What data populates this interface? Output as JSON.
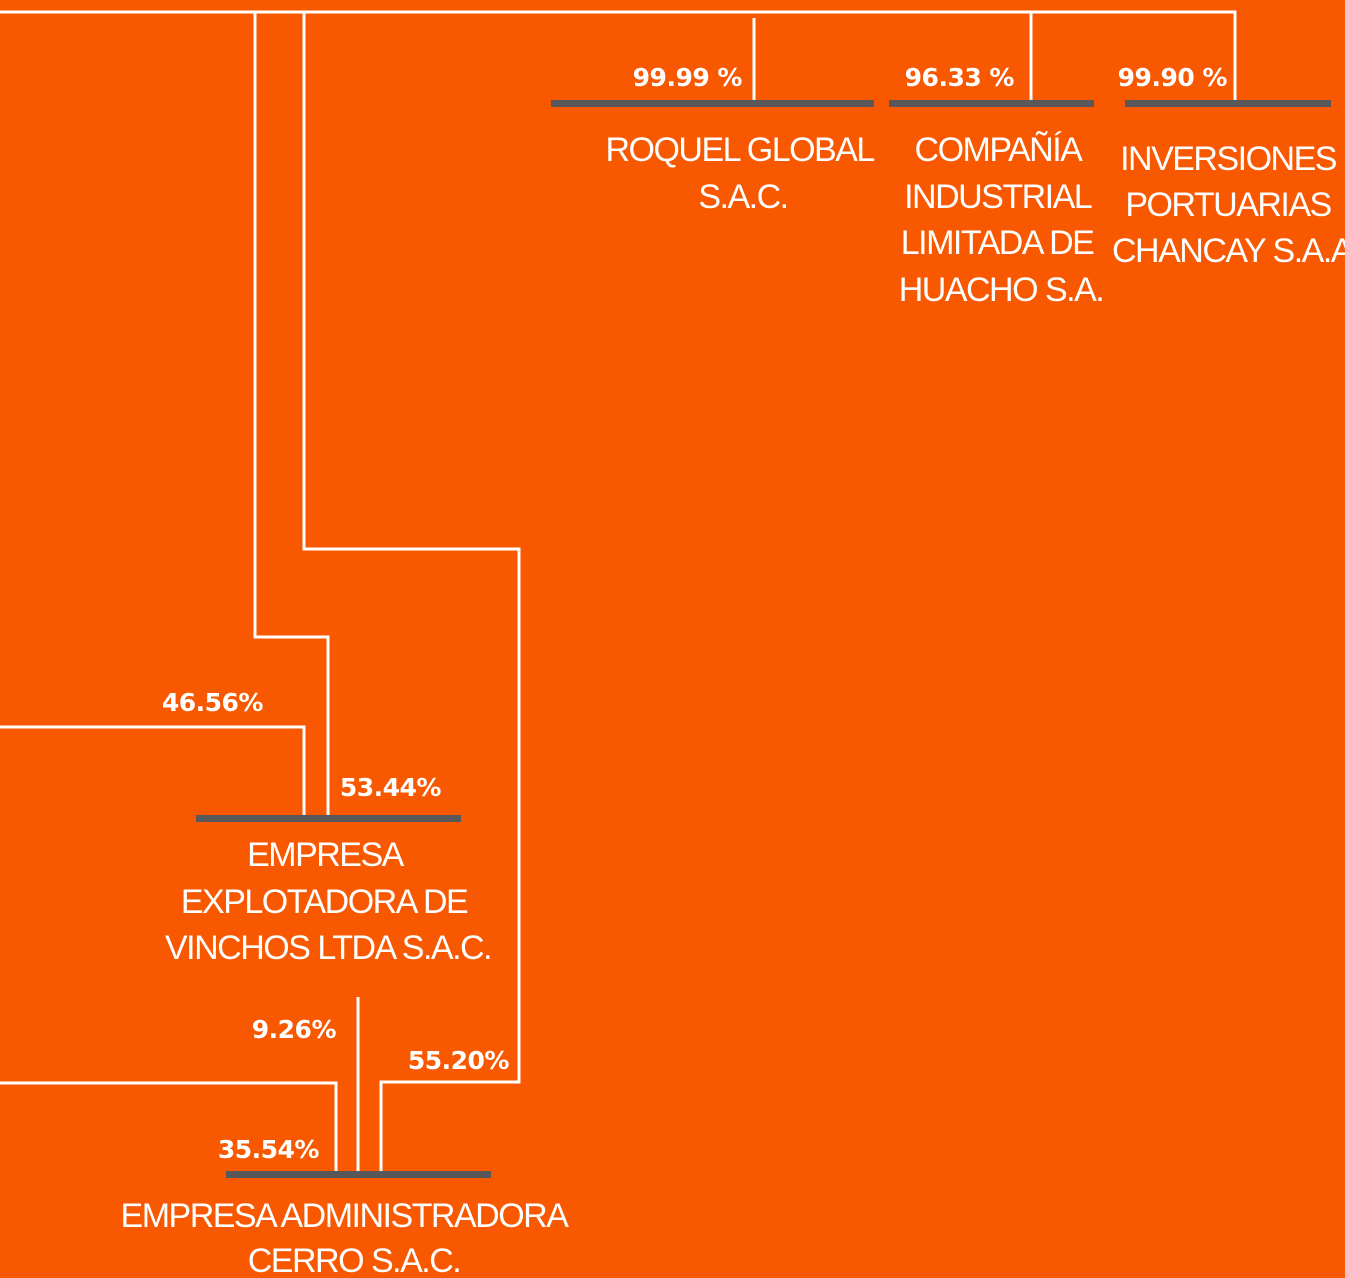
{
  "background_color": "#F85800",
  "line_color": "#FFFFFF",
  "bar_color": "#58585A",
  "companies": {
    "roquel": {
      "name_lines": [
        "ROQUEL GLOBAL",
        "S.A.C."
      ],
      "ownership": "99.99 %"
    },
    "cilh": {
      "name_lines": [
        "COMPAÑÍA",
        "INDUSTRIAL",
        "LIMITADA DE",
        "HUACHO S.A."
      ],
      "ownership": "96.33 %"
    },
    "ipc": {
      "name_lines": [
        "INVERSIONES",
        "PORTUARIAS",
        "CHANCAY S.A.A"
      ],
      "ownership": "99.90 %"
    },
    "vinchos": {
      "name_lines": [
        "EMPRESA",
        "EXPLOTADORA DE",
        "VINCHOS LTDA S.A.C."
      ],
      "ownership_left": "46.56%",
      "ownership_right": "53.44%"
    },
    "cerro": {
      "name_lines": [
        "EMPRESA ADMINISTRADORA",
        "CERRO S.A.C."
      ],
      "ownership_left": "35.54%",
      "ownership_center": "9.26%",
      "ownership_right": "55.20%"
    }
  }
}
